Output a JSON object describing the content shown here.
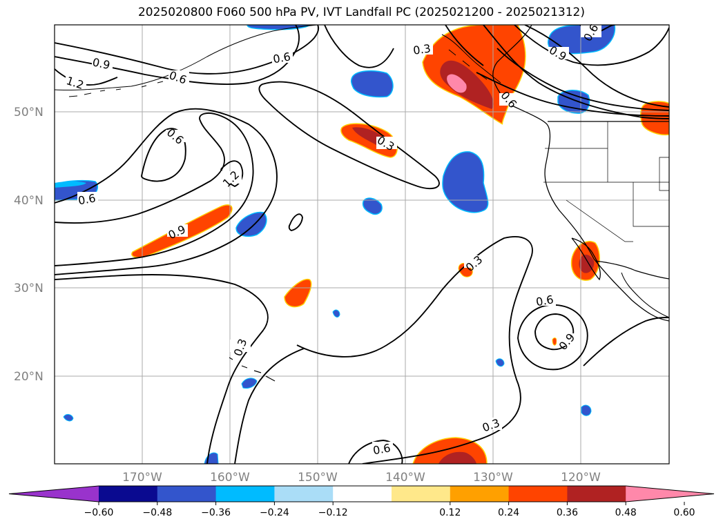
{
  "title": "2025020800 F060 500 hPa PV, IVT Landfall PC (2025021200 - 2025021312)",
  "lat_labels": [
    "50°N",
    "40°N",
    "30°N",
    "20°N"
  ],
  "lon_labels": [
    "170°W",
    "160°W",
    "150°W",
    "140°W",
    "130°W",
    "120°W"
  ],
  "contour_labels": [
    "0.9",
    "1.2",
    "0.6",
    "0.6",
    "0.3",
    "0.6",
    "0.9",
    "0.6",
    "0.3",
    "1.2",
    "0.6",
    "0.9",
    "0.6",
    "0.3",
    "0.3",
    "0.6",
    "0.9",
    "0.6",
    "0.3"
  ],
  "colorbar": {
    "ticks": [
      "−0.60",
      "−0.48",
      "−0.36",
      "−0.24",
      "−0.12",
      "0.12",
      "0.24",
      "0.36",
      "0.48",
      "0.60"
    ],
    "colors": [
      "#9933cc",
      "#0a0a90",
      "#3355cc",
      "#00bbff",
      "#aaddf7",
      "#ffffff",
      "#ffe88a",
      "#ffa000",
      "#ff4400",
      "#b02222",
      "#ff88aa"
    ]
  },
  "colors": {
    "positive_strong": "#ff4400",
    "positive_mid": "#b02222",
    "negative": "#3355cc",
    "contour": "#000000",
    "grid": "#aaaaaa"
  }
}
